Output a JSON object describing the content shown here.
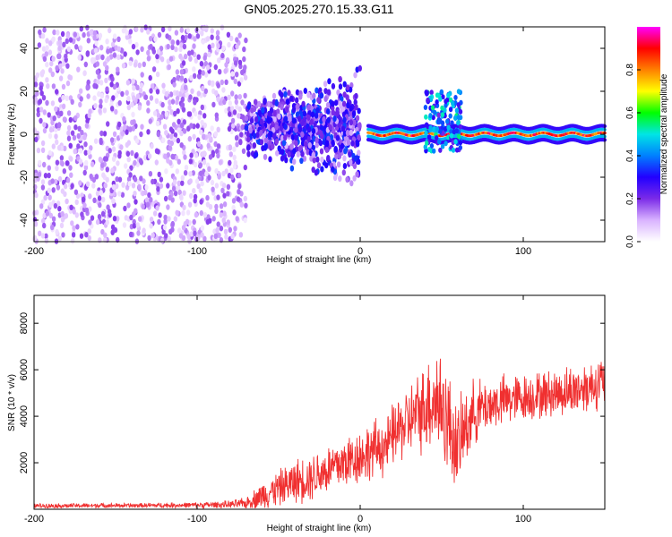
{
  "title": "GN05.2025.270.15.33.G11",
  "chart_data": [
    {
      "type": "heatmap",
      "xlabel": "Height of straight line (km)",
      "ylabel": "Frequency (Hz)",
      "xlim": [
        -200,
        150
      ],
      "ylim": [
        -50,
        50
      ],
      "xticks": [
        -200,
        -100,
        0,
        100
      ],
      "yticks": [
        -40,
        -20,
        0,
        20,
        40
      ],
      "colorbar": {
        "label": "Normalized spectral amplitude",
        "range": [
          0,
          1
        ],
        "ticks": [
          "0.0",
          "0.2",
          "0.4",
          "0.6",
          "0.8"
        ],
        "colormap": [
          "#ffffff",
          "#d9b3ff",
          "#7b2be8",
          "#2200ff",
          "#0080ff",
          "#00e5e5",
          "#00ff00",
          "#ffff00",
          "#ff8000",
          "#ff0000",
          "#ff00ff"
        ]
      },
      "regions": [
        {
          "x_range": [
            -200,
            -70
          ],
          "pattern": "broadband scattered noise",
          "typical_amplitude": 0.1
        },
        {
          "x_range": [
            -70,
            0
          ],
          "pattern": "noisy band near 0 Hz",
          "freq_spread_hz": [
            -30,
            40
          ],
          "peak_amplitude": 0.35
        },
        {
          "x_range": [
            5,
            150
          ],
          "pattern": "narrow carrier line",
          "freq_hz": 0,
          "peak_amplitude": 0.95
        },
        {
          "x_range": [
            40,
            62
          ],
          "pattern": "line perturbation",
          "freq_spread_hz": [
            -8,
            20
          ],
          "peak_amplitude": 0.5
        }
      ]
    },
    {
      "type": "line",
      "xlabel": "Height of straight line (km)",
      "ylabel": "SNR (10 * v/v)",
      "xlim": [
        -200,
        150
      ],
      "ylim": [
        0,
        9200
      ],
      "xticks": [
        -200,
        -100,
        0,
        100
      ],
      "yticks": [
        2000,
        4000,
        6000,
        8000
      ],
      "color": "#f03030",
      "series": [
        {
          "x": [
            -200,
            -180,
            -160,
            -140,
            -120,
            -100,
            -80,
            -70,
            -60,
            -50,
            -40,
            -30,
            -20,
            -10,
            0,
            10,
            18,
            20,
            30,
            40,
            45,
            50,
            55,
            60,
            65,
            70,
            80,
            90,
            100,
            110,
            120,
            130,
            140,
            150
          ],
          "y": [
            150,
            150,
            160,
            160,
            170,
            180,
            200,
            250,
            600,
            900,
            1200,
            1400,
            1700,
            2000,
            2300,
            2600,
            2800,
            3200,
            3800,
            4400,
            4800,
            4500,
            3500,
            2600,
            3600,
            4200,
            4500,
            4700,
            4800,
            4900,
            5000,
            5100,
            5300,
            5500
          ],
          "spread": [
            120,
            120,
            120,
            120,
            130,
            150,
            200,
            300,
            700,
            900,
            1100,
            1200,
            1300,
            1400,
            1400,
            1500,
            1500,
            1600,
            1800,
            2200,
            2800,
            3000,
            2600,
            2200,
            2000,
            1600,
            1300,
            1300,
            1200,
            1200,
            1200,
            1300,
            1300,
            1300
          ]
        }
      ]
    }
  ]
}
